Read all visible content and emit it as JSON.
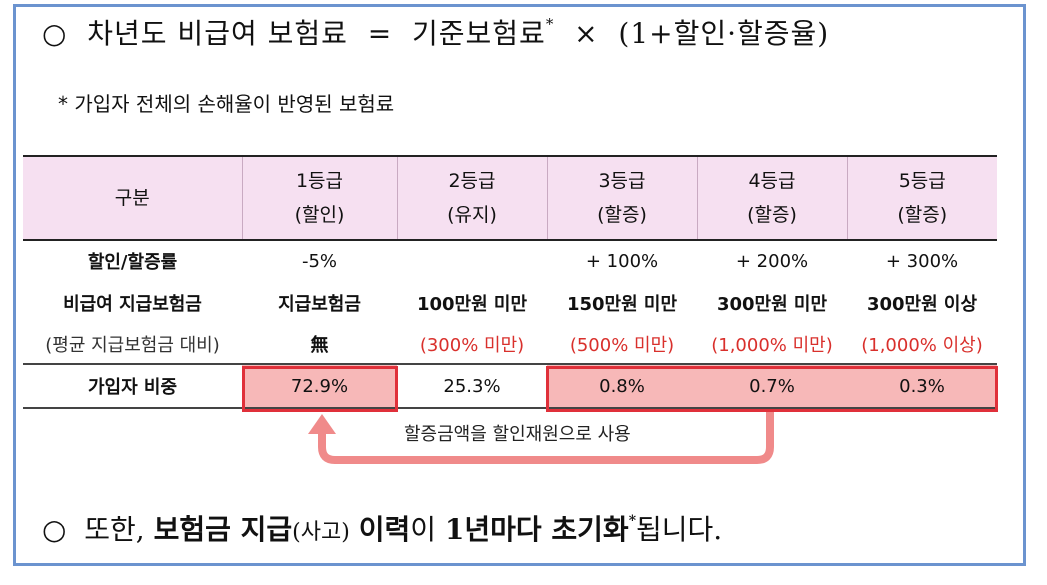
{
  "formula": {
    "bullet": "○",
    "lhs": "차년도 비급여 보험료",
    "equals": "=",
    "base": "기준보험료",
    "star": "*",
    "times": "×",
    "factor": "(1+할인·할증율)"
  },
  "footnote": "* 가입자 전체의 손해율이 반영된 보험료",
  "table": {
    "header": {
      "category": "구분",
      "grades": [
        {
          "grade": "1등급",
          "status": "(할인)"
        },
        {
          "grade": "2등급",
          "status": "(유지)"
        },
        {
          "grade": "3등급",
          "status": "(할증)"
        },
        {
          "grade": "4등급",
          "status": "(할증)"
        },
        {
          "grade": "5등급",
          "status": "(할증)"
        }
      ]
    },
    "rate_row": {
      "label": "할인/할증률",
      "values": [
        "-5%",
        "",
        "+ 100%",
        "+ 200%",
        "+ 300%"
      ]
    },
    "payout_row": {
      "label": "비급여 지급보험금",
      "sublabel": "(평균 지급보험금 대비)",
      "values": [
        "지급보험금",
        "100만원 미만",
        "150만원 미만",
        "300만원 미만",
        "300만원 이상"
      ],
      "subvalues": [
        "無",
        "(300% 미만)",
        "(500% 미만)",
        "(1,000% 미만)",
        "(1,000% 이상)"
      ]
    },
    "share_row": {
      "label": "가입자 비중",
      "values": [
        "72.9%",
        "25.3%",
        "0.8%",
        "0.7%",
        "0.3%"
      ]
    }
  },
  "arrow_label": "할증금액을 할인재원으로 사용",
  "bottom": {
    "bullet": "○",
    "t1": "또한,",
    "t2": "보험금 지급",
    "t3": "(사고)",
    "t4": "이력",
    "t5": "이",
    "t6": "1년마다 초기화",
    "star": "*",
    "t7": "됩니다."
  },
  "colors": {
    "frame": "#6b93cf",
    "header_bg": "#f6e0f1",
    "highlight": "#f7b8b8",
    "red_text": "#d9302c",
    "box_border": "#e0303a",
    "arrow": "#f08a8a"
  }
}
